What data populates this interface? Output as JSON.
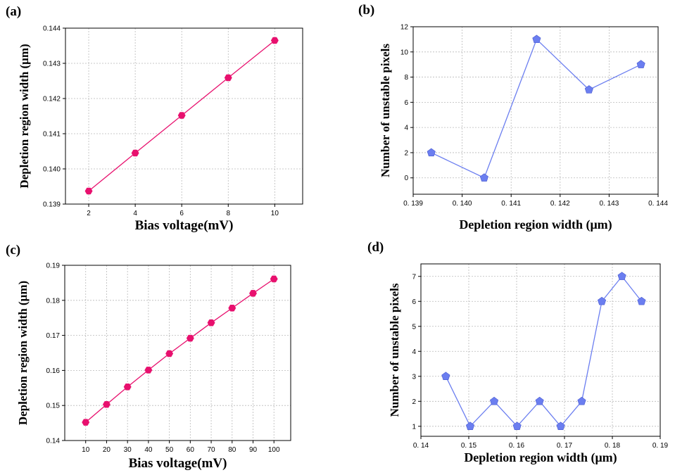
{
  "chart_data": [
    {
      "panel": "(a)",
      "type": "line",
      "marker": "hexagon",
      "color": "#e8106e",
      "xlabel": "Bias voltage(mV)",
      "ylabel": "Depletion region width (μm)",
      "xlim": [
        1,
        11.2
      ],
      "ylim": [
        0.139,
        0.144
      ],
      "x_ticks": [
        2,
        4,
        6,
        8,
        10
      ],
      "x_tick_labels": [
        "2",
        "4",
        "6",
        "8",
        "10"
      ],
      "y_ticks": [
        0.139,
        0.14,
        0.141,
        0.142,
        0.143,
        0.144
      ],
      "y_tick_labels": [
        "0.139",
        "0.140",
        "0.141",
        "0.142",
        "0.143",
        "0.144"
      ],
      "grid": true,
      "x": [
        2,
        4,
        6,
        8,
        10
      ],
      "y": [
        0.13937,
        0.14045,
        0.14152,
        0.14259,
        0.14365
      ]
    },
    {
      "panel": "(b)",
      "type": "line",
      "marker": "pentagon",
      "color": "#6b7ef0",
      "xlabel": "Depletion region width (μm)",
      "ylabel": "Number of unstable pixels",
      "xlim": [
        0.139,
        0.144
      ],
      "ylim": [
        -1.3,
        12
      ],
      "x_ticks": [
        0.139,
        0.14,
        0.141,
        0.142,
        0.143,
        0.144
      ],
      "x_tick_labels": [
        "0. 139",
        "0. 140",
        "0. 141",
        "0. 142",
        "0. 143",
        "0. 144"
      ],
      "y_ticks": [
        0,
        2,
        4,
        6,
        8,
        10,
        12
      ],
      "y_tick_labels": [
        "0",
        "2",
        "4",
        "6",
        "8",
        "10",
        "12"
      ],
      "grid": true,
      "x": [
        0.13937,
        0.14045,
        0.14152,
        0.14259,
        0.14365
      ],
      "y": [
        2,
        0,
        11,
        7,
        9
      ]
    },
    {
      "panel": "(c)",
      "type": "line",
      "marker": "hexagon",
      "color": "#e8106e",
      "xlabel": "Bias voltage(mV)",
      "ylabel": "Depletion region width (μm)",
      "xlim": [
        0,
        108
      ],
      "ylim": [
        0.14,
        0.19
      ],
      "x_ticks": [
        10,
        20,
        30,
        40,
        50,
        60,
        70,
        80,
        90,
        100
      ],
      "x_tick_labels": [
        "10",
        "20",
        "30",
        "40",
        "50",
        "60",
        "70",
        "80",
        "90",
        "100"
      ],
      "y_ticks": [
        0.14,
        0.15,
        0.16,
        0.17,
        0.18,
        0.19
      ],
      "y_tick_labels": [
        "0.14",
        "0.15",
        "0.16",
        "0.17",
        "0.18",
        "0.19"
      ],
      "grid": true,
      "x": [
        10,
        20,
        30,
        40,
        50,
        60,
        70,
        80,
        90,
        100
      ],
      "y": [
        0.1452,
        0.1503,
        0.1553,
        0.1601,
        0.1648,
        0.1692,
        0.1736,
        0.1778,
        0.182,
        0.1861
      ]
    },
    {
      "panel": "(d)",
      "type": "line",
      "marker": "pentagon",
      "color": "#6b7ef0",
      "xlabel": "Depletion region width (μm)",
      "ylabel": "Number of unstable pixels",
      "xlim": [
        0.14,
        0.19
      ],
      "ylim": [
        0.6,
        7.5
      ],
      "x_ticks": [
        0.14,
        0.15,
        0.16,
        0.17,
        0.18,
        0.19
      ],
      "x_tick_labels": [
        "0. 14",
        "0. 15",
        "0. 16",
        "0. 17",
        "0. 18",
        "0. 19"
      ],
      "y_ticks": [
        1,
        2,
        3,
        4,
        5,
        6,
        7
      ],
      "y_tick_labels": [
        "1",
        "2",
        "3",
        "4",
        "5",
        "6",
        "7"
      ],
      "grid": true,
      "x": [
        0.1452,
        0.1503,
        0.1553,
        0.1601,
        0.1648,
        0.1692,
        0.1736,
        0.1778,
        0.182,
        0.1861
      ],
      "y": [
        3,
        1,
        2,
        1,
        2,
        1,
        2,
        6,
        7,
        6
      ]
    }
  ]
}
